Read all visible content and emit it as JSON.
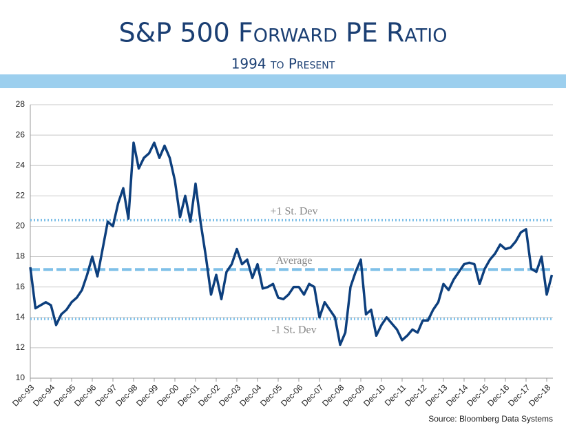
{
  "chart_data": {
    "type": "line",
    "title": "S&P 500 Forward PE Ratio",
    "subtitle": "1994 to Present",
    "source": "Source:  Bloomberg Data Systems",
    "categories": [
      "Dec-93",
      null,
      null,
      null,
      "Dec-94",
      null,
      null,
      null,
      "Dec-95",
      null,
      null,
      null,
      "Dec-96",
      null,
      null,
      null,
      "Dec-97",
      null,
      null,
      null,
      "Dec-98",
      null,
      null,
      null,
      "Dec-99",
      null,
      null,
      null,
      "Dec-00",
      null,
      null,
      null,
      "Dec-01",
      null,
      null,
      null,
      "Dec-02",
      null,
      null,
      null,
      "Dec-03",
      null,
      null,
      null,
      "Dec-04",
      null,
      null,
      null,
      "Dec-05",
      null,
      null,
      null,
      "Dec-06",
      null,
      null,
      null,
      "Dec-07",
      null,
      null,
      null,
      "Dec-08",
      null,
      null,
      null,
      "Dec-09",
      null,
      null,
      null,
      "Dec-10",
      null,
      null,
      null,
      "Dec-11",
      null,
      null,
      null,
      "Dec-12",
      null,
      null,
      null,
      "Dec-13",
      null,
      null,
      null,
      "Dec-14",
      null,
      null,
      null,
      "Dec-15",
      null,
      null,
      null,
      "Dec-16",
      null,
      null,
      null,
      "Dec-17",
      null,
      null,
      null,
      "Dec-18",
      null
    ],
    "series": [
      {
        "color": "#0d3f7d",
        "values": [
          17.3,
          14.6,
          14.8,
          15.0,
          14.8,
          13.5,
          14.2,
          14.5,
          15.0,
          15.3,
          15.8,
          16.8,
          18.0,
          16.7,
          18.5,
          20.3,
          20.0,
          21.5,
          22.5,
          20.5,
          25.5,
          23.8,
          24.5,
          24.8,
          25.5,
          24.5,
          25.3,
          24.5,
          23.0,
          20.6,
          22.0,
          20.3,
          22.8,
          20.2,
          18.0,
          15.5,
          16.8,
          15.2,
          17.0,
          17.5,
          18.5,
          17.5,
          17.8,
          16.6,
          17.5,
          15.9,
          16.0,
          16.2,
          15.3,
          15.2,
          15.5,
          16.0,
          16.0,
          15.5,
          16.2,
          16.0,
          14.0,
          15.0,
          14.5,
          14.0,
          12.2,
          13.0,
          16.0,
          17.0,
          17.8,
          14.2,
          14.5,
          12.8,
          13.5,
          14.0,
          13.6,
          13.2,
          12.5,
          12.8,
          13.2,
          13.0,
          13.8,
          13.8,
          14.5,
          15.0,
          16.2,
          15.8,
          16.5,
          17.0,
          17.5,
          17.6,
          17.5,
          16.2,
          17.2,
          17.8,
          18.2,
          18.8,
          18.5,
          18.6,
          19.0,
          19.6,
          19.8,
          17.2,
          17.0,
          18.0,
          15.5,
          16.8
        ]
      }
    ],
    "reference_lines": [
      {
        "label": "+1 St. Dev",
        "value": 20.4,
        "style": "dotted",
        "color": "#7fc0e8"
      },
      {
        "label": "Average",
        "value": 17.15,
        "style": "dashed",
        "color": "#7fc0e8"
      },
      {
        "label": "-1 St. Dev",
        "value": 13.9,
        "style": "dotted",
        "color": "#7fc0e8"
      }
    ],
    "ylim": [
      10,
      28
    ],
    "yticks": [
      10,
      12,
      14,
      16,
      18,
      20,
      22,
      24,
      26,
      28
    ],
    "grid": true
  }
}
